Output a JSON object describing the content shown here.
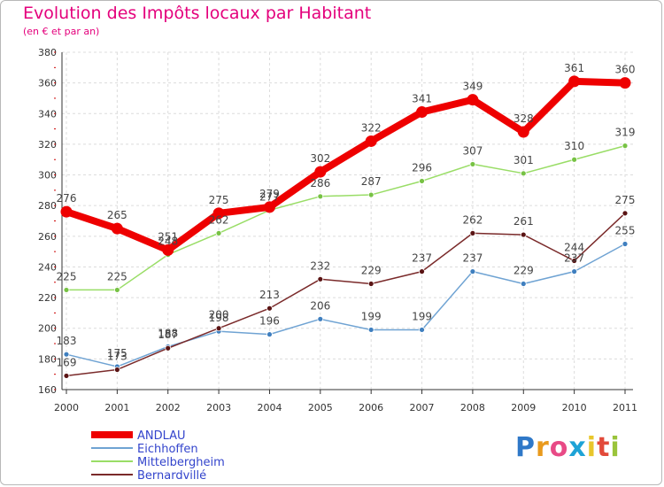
{
  "chart_data": {
    "type": "line",
    "title": "Evolution des Impôts locaux par Habitant",
    "subtitle": "(en € et par an)",
    "categories": [
      "2000",
      "2001",
      "2002",
      "2003",
      "2004",
      "2005",
      "2006",
      "2007",
      "2008",
      "2009",
      "2010",
      "2011"
    ],
    "ylim": [
      160,
      380
    ],
    "yticks": [
      160,
      180,
      200,
      220,
      240,
      260,
      280,
      300,
      320,
      340,
      360,
      380
    ],
    "series": [
      {
        "name": "ANDLAU",
        "color": "#ee0000",
        "values": [
          276,
          265,
          251,
          275,
          279,
          302,
          322,
          341,
          349,
          328,
          361,
          360
        ]
      },
      {
        "name": "Eichhoffen",
        "color": "#6fa3d3",
        "values": [
          183,
          175,
          188,
          198,
          196,
          206,
          199,
          199,
          237,
          229,
          237,
          255
        ]
      },
      {
        "name": "Mittelbergheim",
        "color": "#99dd66",
        "values": [
          225,
          225,
          248,
          262,
          277,
          286,
          287,
          296,
          307,
          301,
          310,
          319
        ]
      },
      {
        "name": "Bernardvillé",
        "color": "#7a2a2a",
        "values": [
          169,
          173,
          187,
          200,
          213,
          232,
          229,
          237,
          262,
          261,
          244,
          275
        ]
      }
    ]
  },
  "logo": {
    "letters": [
      "P",
      "r",
      "o",
      "x",
      "i",
      "t",
      "i"
    ],
    "colors": [
      "#2f78c8",
      "#e99a1d",
      "#e84a86",
      "#1ea3d6",
      "#e8c62b",
      "#e24a3a",
      "#9ac43b"
    ]
  }
}
